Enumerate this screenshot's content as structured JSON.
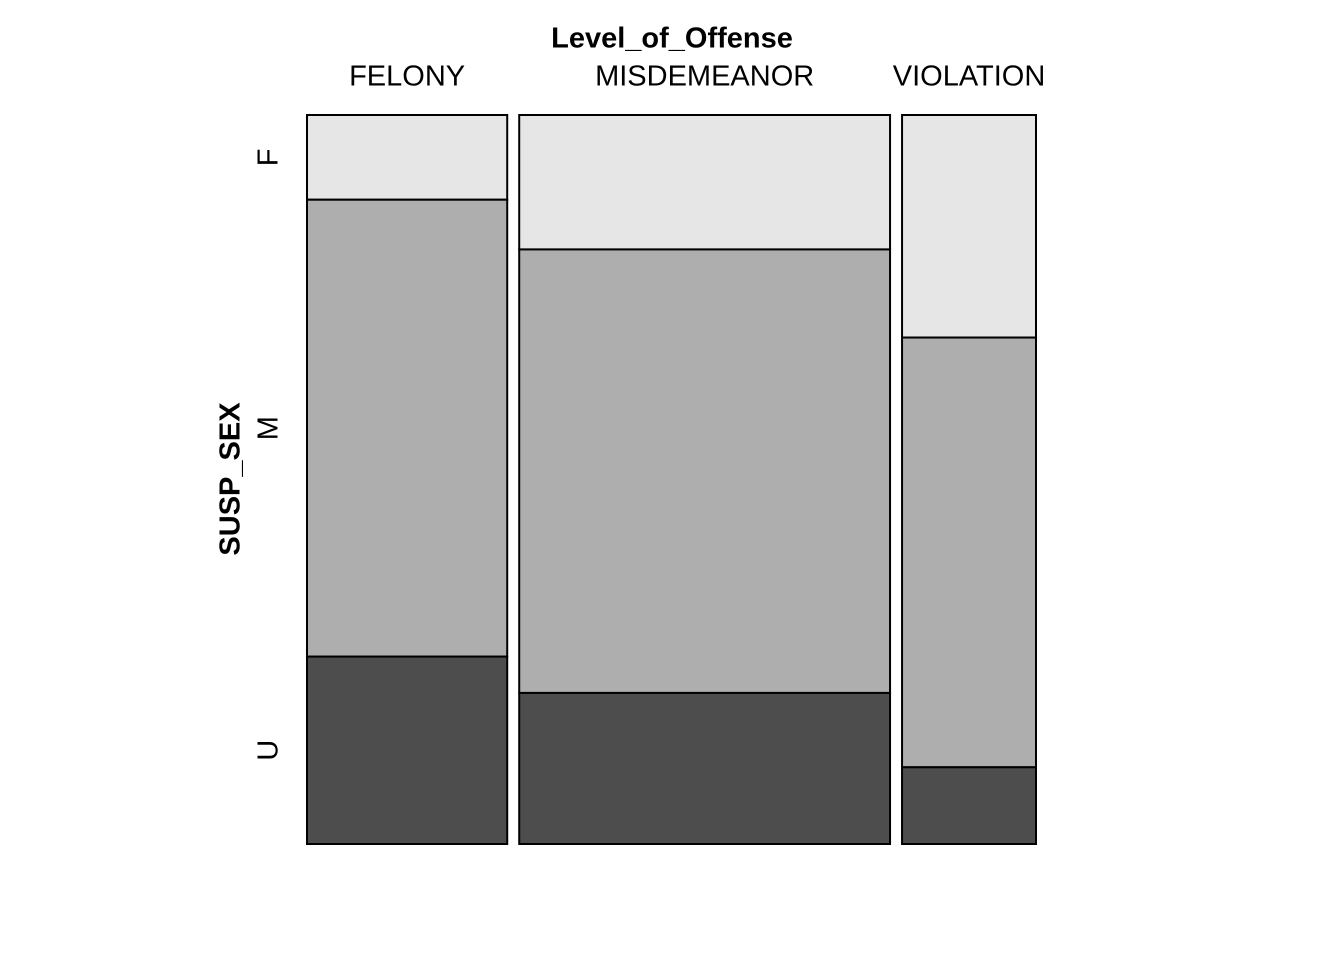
{
  "chart_data": {
    "type": "mosaic",
    "title": "Level_of_Offense",
    "y_label": "SUSP_SEX",
    "categories": [
      "FELONY",
      "MISDEMEANOR",
      "VIOLATION"
    ],
    "series": [
      {
        "name": "F",
        "color": "#e6e6e6",
        "values": [
          3.3,
          9.7,
          5.8
        ]
      },
      {
        "name": "M",
        "color": "#aeaeae",
        "values": [
          17.8,
          32.0,
          11.2
        ]
      },
      {
        "name": "U",
        "color": "#4d4d4d",
        "values": [
          7.3,
          10.9,
          2.0
        ]
      }
    ]
  }
}
